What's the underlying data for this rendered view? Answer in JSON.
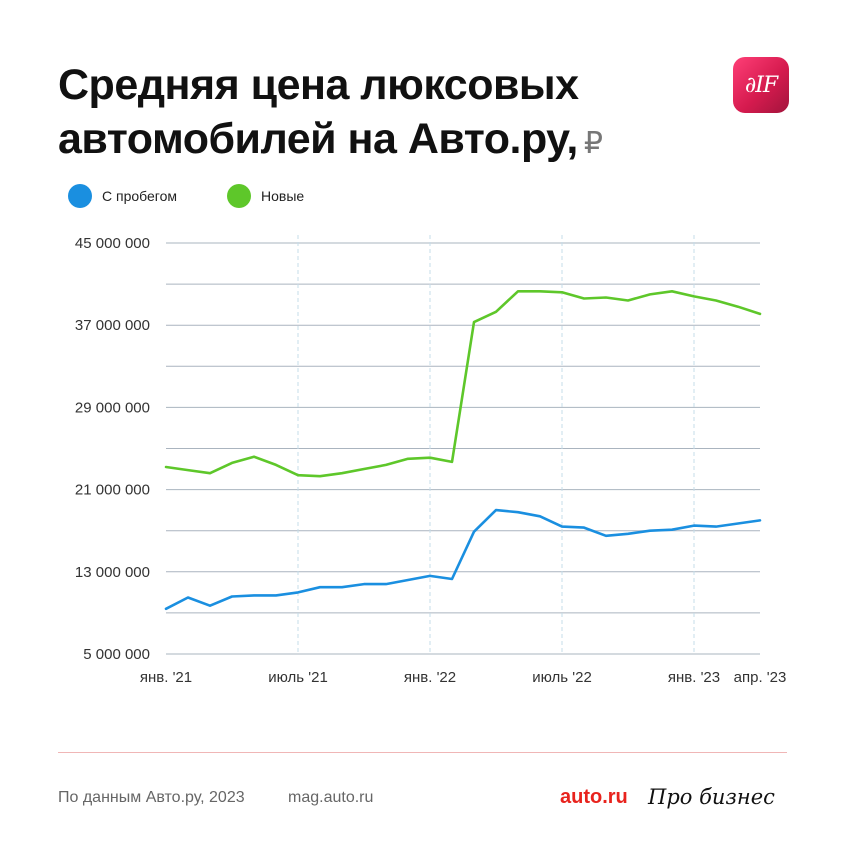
{
  "header": {
    "title_line1": "Средняя цена люксовых",
    "title_line2": "автомобилей на Авто.ру,",
    "currency": "₽",
    "logo_text": "∂IF"
  },
  "legend": {
    "items": [
      {
        "label": "С пробегом",
        "color": "#1a8fe0"
      },
      {
        "label": "Новые",
        "color": "#5ec72a"
      }
    ]
  },
  "footer": {
    "source": "По данным Авто.ру, 2023",
    "site": "mag.auto.ru",
    "brand1": "auto.ru",
    "brand2": "Про бизнес"
  },
  "chart_data": {
    "type": "line",
    "title": "Средняя цена люксовых автомобилей на Авто.ру, ₽",
    "ylim": [
      5000000,
      45000000
    ],
    "y_ticks": [
      5000000,
      13000000,
      21000000,
      29000000,
      37000000,
      45000000
    ],
    "y_tick_labels": [
      "5 000 000",
      "13 000 000",
      "21 000 000",
      "29 000 000",
      "37 000 000",
      "45 000 000"
    ],
    "x_range": [
      0,
      27
    ],
    "x_ticks": [
      {
        "x": 0,
        "label": "янв. '21"
      },
      {
        "x": 6,
        "label": "июль '21"
      },
      {
        "x": 12,
        "label": "янв. '22"
      },
      {
        "x": 18,
        "label": "июль '22"
      },
      {
        "x": 24,
        "label": "янв. '23"
      },
      {
        "x": 27,
        "label": "апр. '23"
      }
    ],
    "vertical_guides": [
      6,
      12,
      18,
      24
    ],
    "grid": true,
    "legend_position": "top-left",
    "series": [
      {
        "name": "С пробегом",
        "color": "#1a8fe0",
        "values": [
          9400000,
          10500000,
          9700000,
          10600000,
          10700000,
          10700000,
          11000000,
          11500000,
          11500000,
          11800000,
          11800000,
          12200000,
          12600000,
          12300000,
          16900000,
          19000000,
          18800000,
          18400000,
          17400000,
          17300000,
          16500000,
          16700000,
          17000000,
          17100000,
          17500000,
          17400000,
          17700000,
          18000000
        ]
      },
      {
        "name": "Новые",
        "color": "#5ec72a",
        "values": [
          23200000,
          22900000,
          22600000,
          23600000,
          24200000,
          23400000,
          22400000,
          22300000,
          22600000,
          23000000,
          23400000,
          24000000,
          24100000,
          23700000,
          37300000,
          38300000,
          40300000,
          40300000,
          40200000,
          39600000,
          39700000,
          39400000,
          40000000,
          40300000,
          39800000,
          39400000,
          38800000,
          38100000
        ]
      }
    ]
  }
}
